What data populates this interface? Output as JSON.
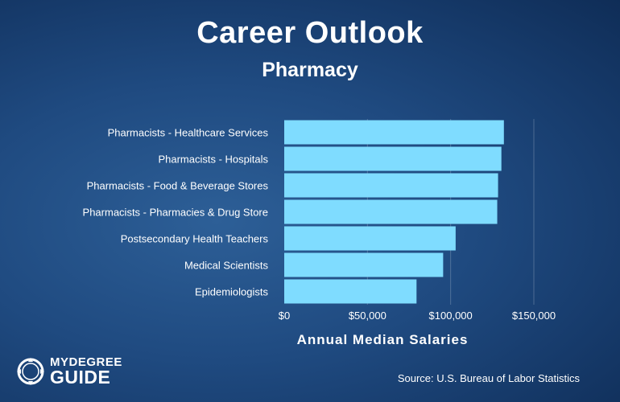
{
  "header": {
    "title": "Career Outlook",
    "subtitle": "Pharmacy"
  },
  "chart_data": {
    "type": "bar",
    "orientation": "horizontal",
    "categories": [
      "Pharmacists - Healthcare Services",
      "Pharmacists -  Hospitals",
      "Pharmacists - Food & Beverage Stores",
      "Pharmacists - Pharmacies & Drug Store",
      "Postsecondary Health Teachers",
      "Medical Scientists",
      "Epidemiologists"
    ],
    "values": [
      132000,
      130500,
      128500,
      128000,
      103000,
      95500,
      79500
    ],
    "xlabel": "Annual Median Salaries",
    "xlim": [
      0,
      150000
    ],
    "xticks": [
      0,
      50000,
      100000,
      150000
    ],
    "xtick_labels": [
      "$0",
      "$50,000",
      "$100,000",
      "$150,000"
    ],
    "grid": "vertical",
    "bar_color": "#7fdcff"
  },
  "footer": {
    "source": "Source: U.S. Bureau of Labor Statistics",
    "logo_line1": "MYDEGREE",
    "logo_line2": "GUIDE"
  }
}
